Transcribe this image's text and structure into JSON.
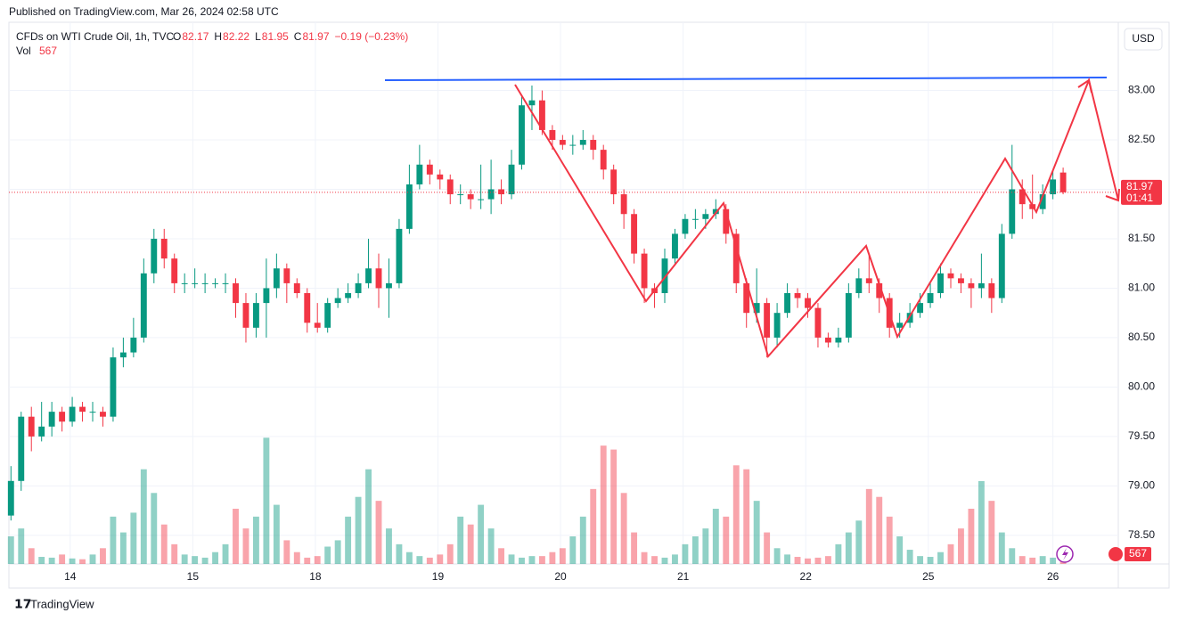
{
  "published": "Published on TradingView.com, Mar 26, 2024 02:58 UTC",
  "chart_data": {
    "type": "candlestick",
    "symbol": "CFDs on WTI Crude Oil, 1h, TVC",
    "ohlc_letters": [
      "O",
      "H",
      "L",
      "C"
    ],
    "change": "−0.19 (−0.23%)",
    "volume_label": "Vol",
    "currency": "USD",
    "countdown": "01:41",
    "up_color": "#089981",
    "down_color": "#f23645",
    "open": [
      78.7,
      79.05,
      79.7,
      79.5,
      79.6,
      79.75,
      79.65,
      79.8,
      79.75,
      79.75,
      79.7,
      80.3,
      80.35,
      80.5,
      81.15,
      81.5,
      81.3,
      81.05,
      81.05,
      81.05,
      81.05,
      81.05,
      81.05,
      80.85,
      80.6,
      80.85,
      81.0,
      81.2,
      81.05,
      80.95,
      80.65,
      80.6,
      80.85,
      80.9,
      80.95,
      81.05,
      81.2,
      81.0,
      81.05,
      81.6,
      82.05,
      82.25,
      82.15,
      82.1,
      81.95,
      81.95,
      81.9,
      81.9,
      82.0,
      81.95,
      82.25,
      82.85,
      82.9,
      82.6,
      82.5,
      82.45,
      82.45,
      82.5,
      82.4,
      82.2,
      81.95,
      81.75,
      81.35,
      81.0,
      80.95,
      81.3,
      81.55,
      81.7,
      81.7,
      81.75,
      81.8,
      81.55,
      81.05,
      80.75,
      80.85,
      80.5,
      80.75,
      80.95,
      80.9,
      80.8,
      80.5,
      80.45,
      80.5,
      80.95,
      81.1,
      81.05,
      80.9,
      80.6,
      80.65,
      80.75,
      80.85,
      80.95,
      81.15,
      81.1,
      81.05,
      81.0,
      81.05,
      80.9,
      81.55,
      82.0,
      81.85,
      81.8,
      81.95,
      82.17
    ],
    "high": [
      79.2,
      79.75,
      79.8,
      79.85,
      79.85,
      79.8,
      79.9,
      79.85,
      79.85,
      79.8,
      80.4,
      80.5,
      80.7,
      81.3,
      81.6,
      81.6,
      81.35,
      81.15,
      81.2,
      81.15,
      81.1,
      81.15,
      81.1,
      80.95,
      80.95,
      81.3,
      81.35,
      81.25,
      81.1,
      81.0,
      80.85,
      80.9,
      81.0,
      81.05,
      81.15,
      81.5,
      81.35,
      81.3,
      81.7,
      82.25,
      82.45,
      82.3,
      82.2,
      82.15,
      82.05,
      82.0,
      82.25,
      82.3,
      82.1,
      82.4,
      82.95,
      83.05,
      83.0,
      82.65,
      82.55,
      82.55,
      82.6,
      82.55,
      82.45,
      82.25,
      82.0,
      81.8,
      81.4,
      81.05,
      81.4,
      81.6,
      81.75,
      81.8,
      81.8,
      81.9,
      81.85,
      81.6,
      81.1,
      81.2,
      80.9,
      80.85,
      81.05,
      81.0,
      80.95,
      80.85,
      80.55,
      80.6,
      81.05,
      81.2,
      81.35,
      81.1,
      80.95,
      80.75,
      80.85,
      80.95,
      81.05,
      81.25,
      81.2,
      81.15,
      81.1,
      81.35,
      81.1,
      81.65,
      82.45,
      82.1,
      82.15,
      82.05,
      82.2,
      82.22
    ],
    "low": [
      78.65,
      78.95,
      79.35,
      79.45,
      79.5,
      79.55,
      79.6,
      79.65,
      79.65,
      79.6,
      79.65,
      80.2,
      80.3,
      80.45,
      81.05,
      81.2,
      80.95,
      80.95,
      81.0,
      80.95,
      81.0,
      80.95,
      80.7,
      80.45,
      80.5,
      80.5,
      80.9,
      80.85,
      80.9,
      80.55,
      80.55,
      80.55,
      80.8,
      80.85,
      80.9,
      81.0,
      80.8,
      80.7,
      81.0,
      81.55,
      82.0,
      82.05,
      82.0,
      81.85,
      81.85,
      81.8,
      81.8,
      81.75,
      81.85,
      81.9,
      82.2,
      82.6,
      82.55,
      82.4,
      82.4,
      82.35,
      82.4,
      82.3,
      82.1,
      81.85,
      81.6,
      81.25,
      80.85,
      80.8,
      80.85,
      81.25,
      81.5,
      81.6,
      81.6,
      81.7,
      81.45,
      80.95,
      80.6,
      80.65,
      80.3,
      80.4,
      80.7,
      80.8,
      80.7,
      80.4,
      80.4,
      80.4,
      80.45,
      80.9,
      80.95,
      80.75,
      80.5,
      80.5,
      80.6,
      80.7,
      80.8,
      80.9,
      81.0,
      80.95,
      80.8,
      80.9,
      80.75,
      80.85,
      81.5,
      81.7,
      81.7,
      81.75,
      81.9,
      81.95
    ],
    "close": [
      79.05,
      79.7,
      79.5,
      79.6,
      79.75,
      79.65,
      79.8,
      79.75,
      79.75,
      79.7,
      80.3,
      80.35,
      80.5,
      81.15,
      81.5,
      81.3,
      81.05,
      81.05,
      81.05,
      81.05,
      81.05,
      81.05,
      80.85,
      80.6,
      80.85,
      81.0,
      81.2,
      81.05,
      80.95,
      80.65,
      80.6,
      80.85,
      80.9,
      80.95,
      81.05,
      81.2,
      81.0,
      81.05,
      81.6,
      82.05,
      82.25,
      82.15,
      82.1,
      81.95,
      81.95,
      81.9,
      81.9,
      82.0,
      81.95,
      82.25,
      82.85,
      82.9,
      82.6,
      82.5,
      82.45,
      82.45,
      82.5,
      82.4,
      82.2,
      81.95,
      81.75,
      81.35,
      81.0,
      80.95,
      81.3,
      81.55,
      81.7,
      81.7,
      81.75,
      81.8,
      81.55,
      81.05,
      80.75,
      80.85,
      80.5,
      80.75,
      80.95,
      80.9,
      80.8,
      80.5,
      80.45,
      80.5,
      80.95,
      81.1,
      81.05,
      80.9,
      80.6,
      80.65,
      80.75,
      80.85,
      80.95,
      81.15,
      81.1,
      81.05,
      81.0,
      81.05,
      80.9,
      81.55,
      82.0,
      81.85,
      81.8,
      81.95,
      82.1,
      81.97
    ],
    "volume": [
      3500,
      4500,
      2000,
      900,
      800,
      1200,
      700,
      600,
      1200,
      2000,
      6000,
      4000,
      6500,
      12000,
      9000,
      5000,
      2500,
      1200,
      1000,
      800,
      1500,
      2500,
      7000,
      4500,
      6000,
      16000,
      7500,
      3000,
      1500,
      800,
      1000,
      2200,
      3000,
      6000,
      8500,
      12000,
      8000,
      4500,
      2500,
      1500,
      1000,
      800,
      1200,
      2500,
      6000,
      5000,
      7500,
      4500,
      2000,
      1200,
      800,
      1000,
      1000,
      1500,
      2000,
      3500,
      6000,
      9500,
      15000,
      14500,
      9000,
      4000,
      1500,
      1000,
      800,
      1200,
      2500,
      3500,
      4500,
      7000,
      6000,
      12500,
      12000,
      8000,
      4000,
      2000,
      1200,
      900,
      700,
      800,
      1000,
      2500,
      4000,
      5500,
      9500,
      8500,
      6000,
      3500,
      1800,
      1000,
      900,
      1500,
      2500,
      4500,
      7000,
      10500,
      8000,
      4000,
      2000,
      1000,
      800,
      1000,
      800,
      567
    ],
    "xlim": [
      -0.2,
      108.4
    ],
    "xticks": [
      {
        "value": 5.8,
        "label": "14"
      },
      {
        "value": 17.8,
        "label": "15"
      },
      {
        "value": 29.8,
        "label": "18"
      },
      {
        "value": 41.8,
        "label": "19"
      },
      {
        "value": 53.8,
        "label": "20"
      },
      {
        "value": 65.8,
        "label": "21"
      },
      {
        "value": 77.8,
        "label": "22"
      },
      {
        "value": 89.8,
        "label": "25"
      },
      {
        "value": 102,
        "label": "26"
      }
    ],
    "ylim": [
      78.21,
      83.69
    ],
    "yticks": [
      {
        "value": 78.5,
        "label": "78.50"
      },
      {
        "value": 79,
        "label": "79.00"
      },
      {
        "value": 79.5,
        "label": "79.50"
      },
      {
        "value": 80,
        "label": "80.00"
      },
      {
        "value": 80.5,
        "label": "80.50"
      },
      {
        "value": 81,
        "label": "81.00"
      },
      {
        "value": 81.5,
        "label": "81.50"
      },
      {
        "value": 82,
        "label": "82.00"
      },
      {
        "value": 82.5,
        "label": "82.50"
      },
      {
        "value": 83,
        "label": "83.00"
      }
    ],
    "volume_lim": [
      0,
      35000
    ],
    "grid": true
  },
  "brand": "TradingView"
}
